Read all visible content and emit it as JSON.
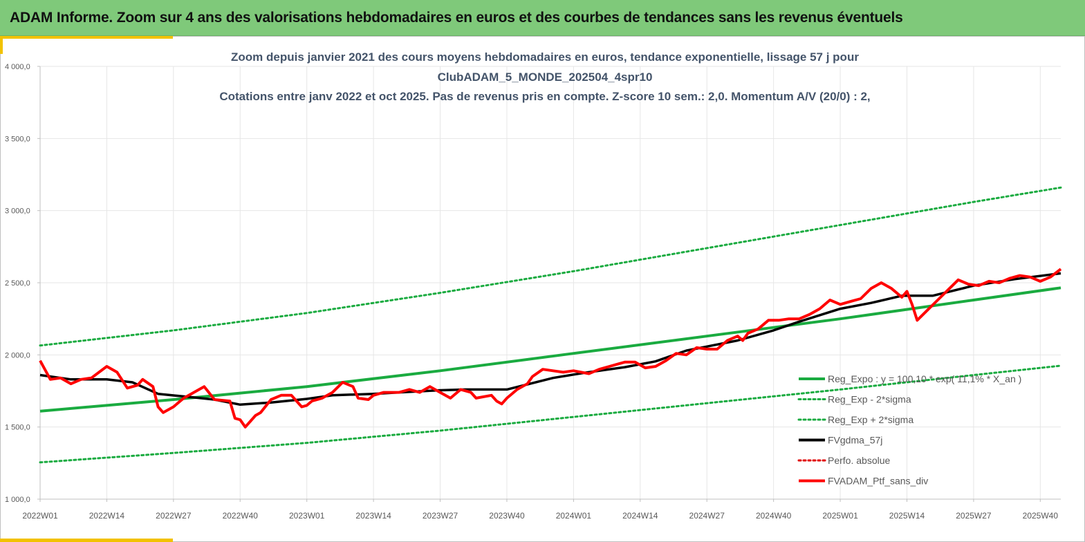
{
  "header": {
    "title": "ADAM Informe. Zoom sur 4 ans des valorisations hebdomadaires en euros et des courbes de tendances sans les revenus éventuels"
  },
  "colors": {
    "banner": "#7fc97a",
    "accent": "#f2c200",
    "trend": "#1aab40",
    "band": "#1aab40",
    "smooth": "#000000",
    "perf": "#e00000",
    "portfolio": "#ff0000"
  },
  "chart_data": {
    "type": "line",
    "title": [
      "Zoom depuis janvier 2021 des cours moyens hebdomadaires  en euros, tendance exponentielle, lissage 57 j pour",
      "ClubADAM_5_MONDE_202504_4spr10",
      "Cotations  entre janv 2022 et oct 2025. Pas de revenus pris en compte. Z-score 10 sem.: 2,0. Momentum A/V (20/0) : 2,"
    ],
    "xlabel": "",
    "ylabel": "",
    "ylim": [
      1000,
      4000
    ],
    "yticks": [
      "1 000,0",
      "1 500,0",
      "2 000,0",
      "2 500,0",
      "3 000,0",
      "3 500,0",
      "4 000,0"
    ],
    "xticks": [
      "2022W01",
      "2022W14",
      "2022W27",
      "2022W40",
      "2023W01",
      "2023W14",
      "2023W27",
      "2023W40",
      "2024W01",
      "2024W14",
      "2024W27",
      "2024W40",
      "2025W01",
      "2025W14",
      "2025W27",
      "2025W40"
    ],
    "x_range_weeks": [
      0,
      199
    ],
    "grid": "vertical",
    "legend_position": "lower-right",
    "series": [
      {
        "name": "Reg_Expo : y = 100,10 * exp( 11,1% *  X_an )",
        "style": "solid",
        "color": "#1aab40",
        "x": [
          0,
          26,
          52,
          78,
          104,
          130,
          156,
          182,
          199
        ],
        "y": [
          1610,
          1690,
          1780,
          1890,
          2010,
          2130,
          2250,
          2380,
          2465
        ]
      },
      {
        "name": "Reg_Exp - 2*sigma",
        "style": "dotted",
        "color": "#1aab40",
        "x": [
          0,
          26,
          52,
          78,
          104,
          130,
          156,
          182,
          199
        ],
        "y": [
          1255,
          1320,
          1390,
          1475,
          1570,
          1665,
          1760,
          1860,
          1925
        ]
      },
      {
        "name": "Reg_Exp + 2*sigma",
        "style": "dotted",
        "color": "#1aab40",
        "x": [
          0,
          26,
          52,
          78,
          104,
          130,
          156,
          182,
          199
        ],
        "y": [
          2065,
          2170,
          2290,
          2430,
          2580,
          2740,
          2900,
          3060,
          3160
        ]
      },
      {
        "name": "FVgdma_57j",
        "style": "solid",
        "color": "#000000",
        "x": [
          0,
          6,
          13,
          18,
          23,
          30,
          34,
          39,
          45,
          52,
          57,
          65,
          70,
          78,
          83,
          91,
          100,
          106,
          114,
          120,
          126,
          136,
          143,
          148,
          156,
          162,
          168,
          174,
          182,
          190,
          199
        ],
        "y": [
          1860,
          1830,
          1830,
          1810,
          1730,
          1705,
          1690,
          1655,
          1670,
          1695,
          1720,
          1730,
          1740,
          1755,
          1760,
          1760,
          1840,
          1875,
          1915,
          1955,
          2030,
          2100,
          2170,
          2230,
          2320,
          2360,
          2410,
          2410,
          2480,
          2525,
          2565
        ]
      },
      {
        "name": "Perfo. absolue",
        "style": "dotted",
        "color": "#e00000",
        "x": [],
        "y": []
      },
      {
        "name": "FVADAM_Ptf_sans_div",
        "style": "solid",
        "color": "#ff0000",
        "x": [
          0,
          2,
          4,
          6,
          8,
          10,
          13,
          15,
          17,
          19,
          20,
          22,
          23,
          24,
          26,
          28,
          31,
          32,
          34,
          37,
          38,
          39,
          40,
          42,
          43,
          45,
          47,
          49,
          51,
          52,
          53,
          55,
          57,
          59,
          61,
          62,
          64,
          65,
          67,
          70,
          72,
          74,
          76,
          78,
          80,
          82,
          84,
          85,
          88,
          89,
          90,
          91,
          93,
          95,
          96,
          98,
          100,
          102,
          104,
          107,
          109,
          111,
          114,
          116,
          118,
          120,
          122,
          124,
          126,
          128,
          130,
          132,
          134,
          136,
          137,
          138,
          140,
          142,
          144,
          146,
          148,
          150,
          152,
          154,
          156,
          158,
          160,
          162,
          164,
          166,
          168,
          169,
          170,
          171,
          173,
          175,
          177,
          179,
          181,
          183,
          185,
          187,
          189,
          191,
          193,
          195,
          197,
          199
        ],
        "y": [
          1960,
          1830,
          1840,
          1800,
          1830,
          1840,
          1920,
          1880,
          1770,
          1790,
          1830,
          1780,
          1640,
          1600,
          1640,
          1700,
          1760,
          1780,
          1690,
          1680,
          1560,
          1550,
          1500,
          1580,
          1600,
          1690,
          1720,
          1720,
          1640,
          1650,
          1680,
          1700,
          1740,
          1810,
          1780,
          1700,
          1690,
          1720,
          1740,
          1740,
          1760,
          1740,
          1780,
          1740,
          1700,
          1760,
          1740,
          1700,
          1720,
          1680,
          1660,
          1700,
          1760,
          1800,
          1850,
          1900,
          1890,
          1880,
          1890,
          1870,
          1900,
          1920,
          1950,
          1950,
          1910,
          1920,
          1960,
          2010,
          2000,
          2050,
          2040,
          2040,
          2100,
          2130,
          2100,
          2150,
          2180,
          2240,
          2240,
          2250,
          2250,
          2280,
          2320,
          2380,
          2350,
          2370,
          2390,
          2460,
          2500,
          2460,
          2400,
          2440,
          2350,
          2240,
          2310,
          2380,
          2450,
          2520,
          2490,
          2480,
          2510,
          2500,
          2530,
          2550,
          2540,
          2510,
          2540,
          2595
        ]
      }
    ]
  }
}
